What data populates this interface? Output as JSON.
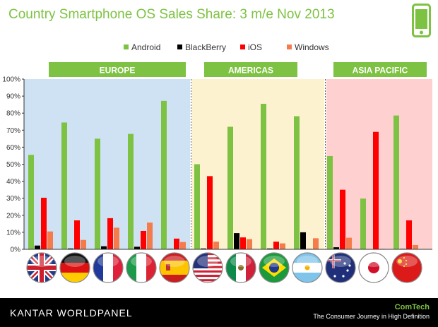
{
  "header": {
    "title": "Country Smartphone OS Sales Share: 3 m/e Nov 2013"
  },
  "icons": {
    "header_icon": "smartphone-icon",
    "accent": "#7dc242"
  },
  "footer": {
    "brand": "KANTAR WORLDPANEL",
    "product": "ComTech",
    "tagline": "The Consumer Journey in High Definition"
  },
  "chart_data": {
    "type": "bar",
    "title": "Country Smartphone OS Sales Share: 3 m/e Nov 2013",
    "ylim": [
      0,
      100
    ],
    "yticks": [
      "0%",
      "10%",
      "20%",
      "30%",
      "40%",
      "50%",
      "60%",
      "70%",
      "80%",
      "90%",
      "100%"
    ],
    "legend_position": "top-center",
    "grid": false,
    "regions": [
      {
        "name": "EUROPE",
        "background": "#cfe2f3",
        "categories": [
          "United Kingdom",
          "Germany",
          "France",
          "Italy",
          "Spain"
        ]
      },
      {
        "name": "AMERICAS",
        "background": "#fdf2cf",
        "categories": [
          "United States",
          "Mexico",
          "Brazil",
          "Argentina"
        ]
      },
      {
        "name": "ASIA PACIFIC",
        "background": "#ffd0d0",
        "categories": [
          "Australia",
          "Japan",
          "China"
        ]
      }
    ],
    "categories": [
      "United Kingdom",
      "Germany",
      "France",
      "Italy",
      "Spain",
      "United States",
      "Mexico",
      "Brazil",
      "Argentina",
      "Australia",
      "Japan",
      "China"
    ],
    "flag_icons": [
      "uk-flag-icon",
      "germany-flag-icon",
      "france-flag-icon",
      "italy-flag-icon",
      "spain-flag-icon",
      "usa-flag-icon",
      "mexico-flag-icon",
      "brazil-flag-icon",
      "argentina-flag-icon",
      "australia-flag-icon",
      "japan-flag-icon",
      "china-flag-icon"
    ],
    "series": [
      {
        "name": "Android",
        "color": "#7dc242",
        "values": [
          55.5,
          74.5,
          65.0,
          67.8,
          87.2,
          50.0,
          72.0,
          85.5,
          78.2,
          54.8,
          29.8,
          78.6
        ]
      },
      {
        "name": "BlackBerry",
        "color": "#000000",
        "values": [
          2.2,
          0.5,
          1.8,
          1.5,
          0.3,
          0.5,
          9.5,
          0.5,
          10.0,
          1.2,
          0.2,
          0.3
        ]
      },
      {
        "name": "iOS",
        "color": "#ff0000",
        "values": [
          30.3,
          17.0,
          18.3,
          10.8,
          6.3,
          43.0,
          7.0,
          4.5,
          0.3,
          35.0,
          69.0,
          17.0
        ]
      },
      {
        "name": "Windows",
        "color": "#f47c4c",
        "values": [
          10.5,
          5.5,
          12.7,
          15.7,
          4.3,
          4.5,
          6.0,
          3.5,
          6.5,
          6.8,
          0.3,
          2.5
        ]
      }
    ]
  }
}
